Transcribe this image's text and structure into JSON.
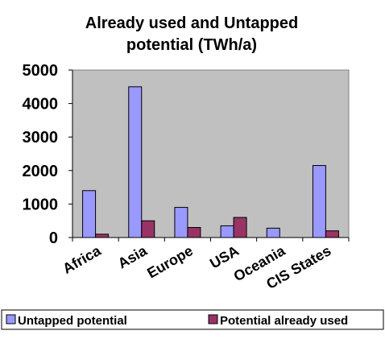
{
  "chart_data": {
    "type": "bar",
    "title": "Already used and Untapped potential (TWh/a)",
    "title_lines": [
      "Already used and Untapped",
      "potential (TWh/a)"
    ],
    "categories": [
      "Africa",
      "Asia",
      "Europe",
      "USA",
      "Oceania",
      "CIS States"
    ],
    "series": [
      {
        "name": "Untapped potential",
        "values": [
          1400,
          4500,
          900,
          350,
          280,
          2150
        ],
        "color": "#9999ff"
      },
      {
        "name": "Potential already used",
        "values": [
          100,
          500,
          300,
          600,
          0,
          200
        ],
        "color": "#993366"
      }
    ],
    "ylim": [
      0,
      5000
    ],
    "yticks": [
      0,
      1000,
      2000,
      3000,
      4000,
      5000
    ],
    "xlabel": "",
    "ylabel": "",
    "grid": false,
    "plot_background": "#c0c0c0",
    "legend_position": "bottom"
  }
}
